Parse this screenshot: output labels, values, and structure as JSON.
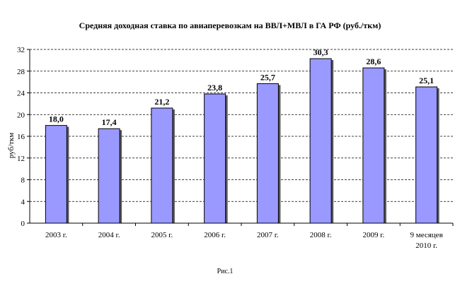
{
  "chart_data": {
    "type": "bar",
    "title": "Средняя доходная ставка по авиаперевозкам на ВВЛ+МВЛ в ГА РФ (руб./ткм)",
    "xlabel": "",
    "ylabel": "руб/ткм",
    "ylim": [
      0,
      32
    ],
    "yticks": [
      0,
      4,
      8,
      12,
      16,
      20,
      24,
      28,
      32
    ],
    "grid": true,
    "legend": "none",
    "categories": [
      [
        "2003 г."
      ],
      [
        "2004 г."
      ],
      [
        "2005 г."
      ],
      [
        "2006 г."
      ],
      [
        "2007 г."
      ],
      [
        "2008 г."
      ],
      [
        "2009 г."
      ],
      [
        "9 месяцев",
        "2010 г."
      ]
    ],
    "values": [
      18.0,
      17.4,
      21.2,
      23.8,
      25.7,
      30.3,
      28.6,
      25.1
    ],
    "value_labels": [
      "18,0",
      "17,4",
      "21,2",
      "23,8",
      "25,7",
      "30,3",
      "28,6",
      "25,1"
    ],
    "bar_color": "#9999ff",
    "bar_edge_color": "#000000",
    "grid_color": "#000000"
  },
  "caption": "Рис.1"
}
